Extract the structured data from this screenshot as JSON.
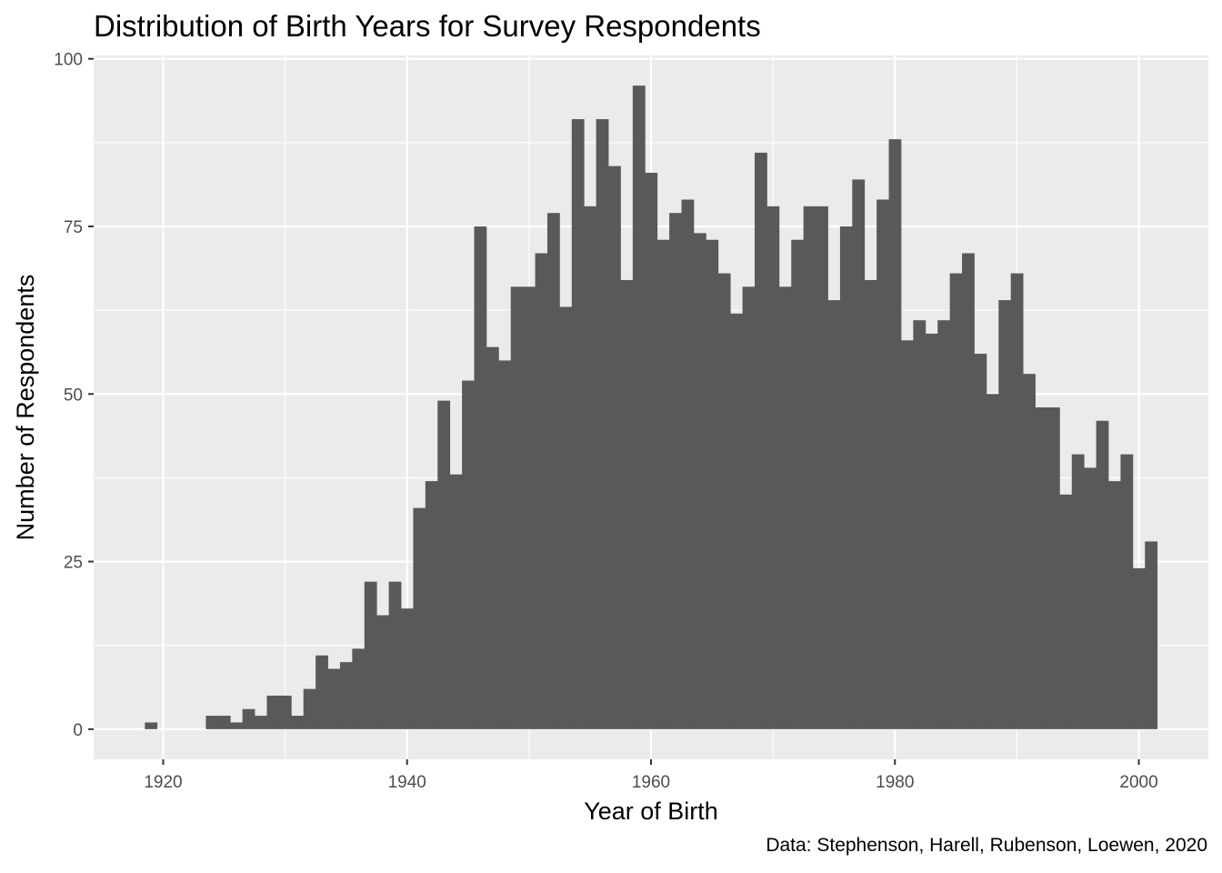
{
  "chart_data": {
    "type": "bar",
    "title": "Distribution of Birth Years for Survey Respondents",
    "caption": "Data: Stephenson, Harell, Rubenson, Loewen, 2020",
    "xlabel": "Year of Birth",
    "ylabel": "Number of Respondents",
    "xlim": [
      1914.3,
      2005.7
    ],
    "ylim": [
      -4.5,
      100.5
    ],
    "xticks": [
      "1920",
      "1940",
      "1960",
      "1980",
      "2000"
    ],
    "yticks": [
      "0",
      "25",
      "50",
      "75",
      "100"
    ],
    "grid": true,
    "bar_color": "#595959",
    "panel_color": "#ebebeb",
    "grid_color": "#ffffff",
    "x": [
      1919,
      1920,
      1921,
      1922,
      1923,
      1924,
      1925,
      1926,
      1927,
      1928,
      1929,
      1930,
      1931,
      1932,
      1933,
      1934,
      1935,
      1936,
      1937,
      1938,
      1939,
      1940,
      1941,
      1942,
      1943,
      1944,
      1945,
      1946,
      1947,
      1948,
      1949,
      1950,
      1951,
      1952,
      1953,
      1954,
      1955,
      1956,
      1957,
      1958,
      1959,
      1960,
      1961,
      1962,
      1963,
      1964,
      1965,
      1966,
      1967,
      1968,
      1969,
      1970,
      1971,
      1972,
      1973,
      1974,
      1975,
      1976,
      1977,
      1978,
      1979,
      1980,
      1981,
      1982,
      1983,
      1984,
      1985,
      1986,
      1987,
      1988,
      1989,
      1990,
      1991,
      1992,
      1993,
      1994,
      1995,
      1996,
      1997,
      1998,
      1999,
      2000,
      2001
    ],
    "values": [
      1,
      0,
      0,
      0,
      0,
      2,
      2,
      1,
      3,
      2,
      5,
      5,
      2,
      6,
      11,
      9,
      10,
      12,
      22,
      17,
      22,
      18,
      33,
      37,
      49,
      38,
      52,
      75,
      57,
      55,
      66,
      66,
      71,
      77,
      63,
      91,
      78,
      91,
      84,
      67,
      96,
      83,
      73,
      77,
      79,
      74,
      73,
      68,
      62,
      66,
      86,
      78,
      66,
      73,
      78,
      78,
      64,
      75,
      82,
      67,
      79,
      88,
      58,
      61,
      59,
      61,
      68,
      71,
      56,
      50,
      64,
      68,
      53,
      48,
      48,
      35,
      41,
      39,
      46,
      37,
      41,
      24,
      28
    ]
  }
}
